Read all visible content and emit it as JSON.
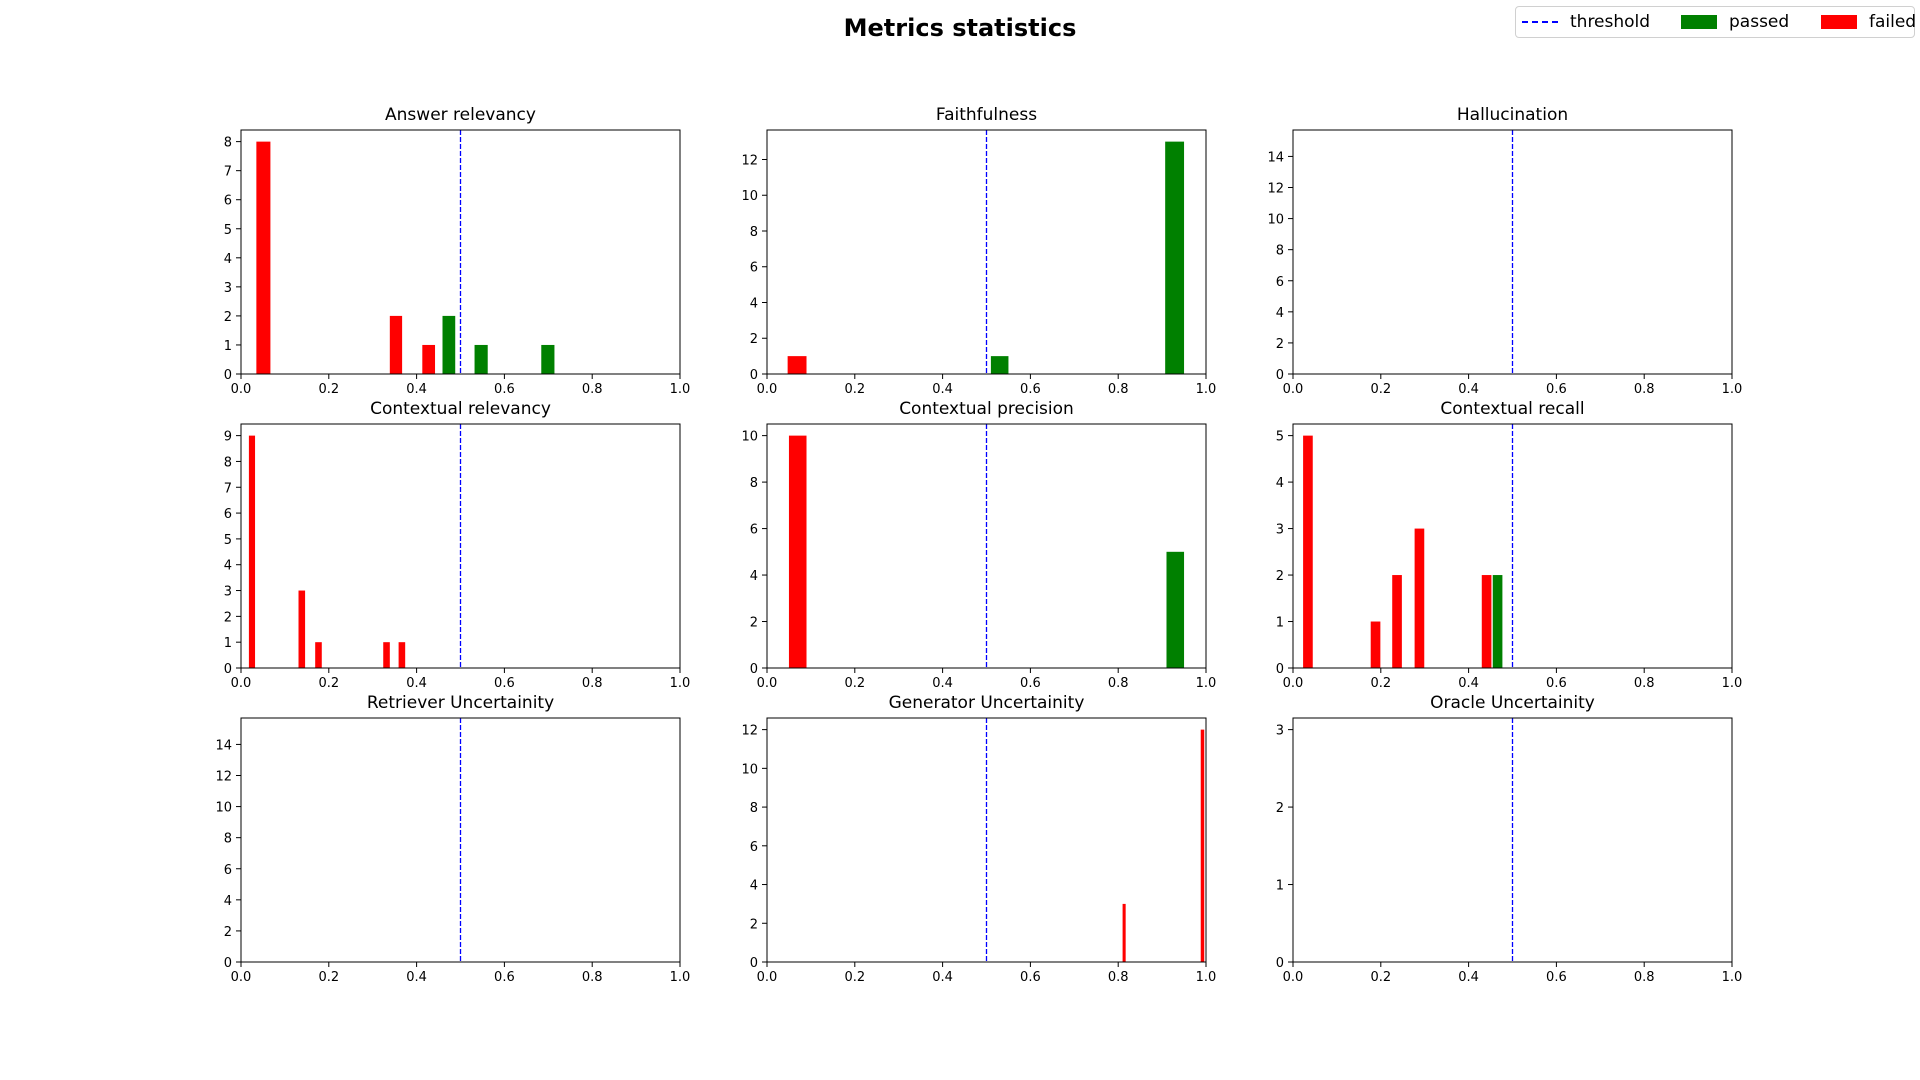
{
  "title": "Metrics statistics",
  "legend": {
    "threshold": "threshold",
    "passed": "passed",
    "failed": "failed"
  },
  "colors": {
    "passed": "#008000",
    "failed": "#ff0000",
    "threshold": "#0000ff"
  },
  "chart_data": [
    {
      "type": "bar",
      "title": "Answer relevancy",
      "xlim": [
        0,
        1
      ],
      "ylim": [
        0,
        8.4
      ],
      "xticks": [
        "0.0",
        "0.2",
        "0.4",
        "0.6",
        "0.8",
        "1.0"
      ],
      "yticks": [
        0,
        1,
        2,
        3,
        4,
        5,
        6,
        7,
        8
      ],
      "threshold": 0.5,
      "bars": [
        {
          "x0": 0.035,
          "x1": 0.067,
          "value": 8,
          "status": "failed"
        },
        {
          "x0": 0.339,
          "x1": 0.367,
          "value": 2,
          "status": "failed"
        },
        {
          "x0": 0.413,
          "x1": 0.442,
          "value": 1,
          "status": "failed"
        },
        {
          "x0": 0.459,
          "x1": 0.488,
          "value": 2,
          "status": "passed"
        },
        {
          "x0": 0.532,
          "x1": 0.562,
          "value": 1,
          "status": "passed"
        },
        {
          "x0": 0.684,
          "x1": 0.714,
          "value": 1,
          "status": "passed"
        }
      ]
    },
    {
      "type": "bar",
      "title": "Faithfulness",
      "xlim": [
        0,
        1
      ],
      "ylim": [
        0,
        13.65
      ],
      "xticks": [
        "0.0",
        "0.2",
        "0.4",
        "0.6",
        "0.8",
        "1.0"
      ],
      "yticks": [
        0,
        2,
        4,
        6,
        8,
        10,
        12
      ],
      "threshold": 0.5,
      "bars": [
        {
          "x0": 0.047,
          "x1": 0.09,
          "value": 1,
          "status": "failed"
        },
        {
          "x0": 0.51,
          "x1": 0.55,
          "value": 1,
          "status": "passed"
        },
        {
          "x0": 0.907,
          "x1": 0.95,
          "value": 13,
          "status": "passed"
        }
      ]
    },
    {
      "type": "bar",
      "title": "Hallucination",
      "xlim": [
        0,
        1
      ],
      "ylim": [
        0,
        15.7
      ],
      "xticks": [
        "0.0",
        "0.2",
        "0.4",
        "0.6",
        "0.8",
        "1.0"
      ],
      "yticks": [
        0,
        2,
        4,
        6,
        8,
        10,
        12,
        14
      ],
      "threshold": 0.5,
      "bars": []
    },
    {
      "type": "bar",
      "title": "Contextual relevancy",
      "xlim": [
        0,
        1
      ],
      "ylim": [
        0,
        9.45
      ],
      "xticks": [
        "0.0",
        "0.2",
        "0.4",
        "0.6",
        "0.8",
        "1.0"
      ],
      "yticks": [
        0,
        1,
        2,
        3,
        4,
        5,
        6,
        7,
        8,
        9
      ],
      "threshold": 0.5,
      "bars": [
        {
          "x0": 0.018,
          "x1": 0.032,
          "value": 9,
          "status": "failed"
        },
        {
          "x0": 0.131,
          "x1": 0.146,
          "value": 3,
          "status": "failed"
        },
        {
          "x0": 0.169,
          "x1": 0.184,
          "value": 1,
          "status": "failed"
        },
        {
          "x0": 0.324,
          "x1": 0.339,
          "value": 1,
          "status": "failed"
        },
        {
          "x0": 0.359,
          "x1": 0.374,
          "value": 1,
          "status": "failed"
        }
      ]
    },
    {
      "type": "bar",
      "title": "Contextual precision",
      "xlim": [
        0,
        1
      ],
      "ylim": [
        0,
        10.5
      ],
      "xticks": [
        "0.0",
        "0.2",
        "0.4",
        "0.6",
        "0.8",
        "1.0"
      ],
      "yticks": [
        0,
        2,
        4,
        6,
        8,
        10
      ],
      "threshold": 0.5,
      "bars": [
        {
          "x0": 0.05,
          "x1": 0.09,
          "value": 10,
          "status": "failed"
        },
        {
          "x0": 0.91,
          "x1": 0.95,
          "value": 5,
          "status": "passed"
        }
      ]
    },
    {
      "type": "bar",
      "title": "Contextual recall",
      "xlim": [
        0,
        1
      ],
      "ylim": [
        0,
        5.25
      ],
      "xticks": [
        "0.0",
        "0.2",
        "0.4",
        "0.6",
        "0.8",
        "1.0"
      ],
      "yticks": [
        0,
        1,
        2,
        3,
        4,
        5
      ],
      "threshold": 0.5,
      "bars": [
        {
          "x0": 0.023,
          "x1": 0.045,
          "value": 5,
          "status": "failed"
        },
        {
          "x0": 0.177,
          "x1": 0.199,
          "value": 1,
          "status": "failed"
        },
        {
          "x0": 0.226,
          "x1": 0.248,
          "value": 2,
          "status": "failed"
        },
        {
          "x0": 0.277,
          "x1": 0.299,
          "value": 3,
          "status": "failed"
        },
        {
          "x0": 0.43,
          "x1": 0.452,
          "value": 2,
          "status": "failed"
        },
        {
          "x0": 0.455,
          "x1": 0.477,
          "value": 2,
          "status": "passed"
        }
      ]
    },
    {
      "type": "bar",
      "title": "Retriever Uncertainity",
      "xlim": [
        0,
        1
      ],
      "ylim": [
        0,
        15.7
      ],
      "xticks": [
        "0.0",
        "0.2",
        "0.4",
        "0.6",
        "0.8",
        "1.0"
      ],
      "yticks": [
        0,
        2,
        4,
        6,
        8,
        10,
        12,
        14
      ],
      "threshold": 0.5,
      "bars": []
    },
    {
      "type": "bar",
      "title": "Generator Uncertainity",
      "xlim": [
        0,
        1
      ],
      "ylim": [
        0,
        12.6
      ],
      "xticks": [
        "0.0",
        "0.2",
        "0.4",
        "0.6",
        "0.8",
        "1.0"
      ],
      "yticks": [
        0,
        2,
        4,
        6,
        8,
        10,
        12
      ],
      "threshold": 0.5,
      "bars": [
        {
          "x0": 0.81,
          "x1": 0.817,
          "value": 3,
          "status": "failed"
        },
        {
          "x0": 0.988,
          "x1": 0.996,
          "value": 12,
          "status": "failed"
        }
      ]
    },
    {
      "type": "bar",
      "title": "Oracle Uncertainity",
      "xlim": [
        0,
        1
      ],
      "ylim": [
        0,
        3.15
      ],
      "xticks": [
        "0.0",
        "0.2",
        "0.4",
        "0.6",
        "0.8",
        "1.0"
      ],
      "yticks": [
        0,
        1,
        2,
        3
      ],
      "threshold": 0.5,
      "bars": []
    }
  ]
}
